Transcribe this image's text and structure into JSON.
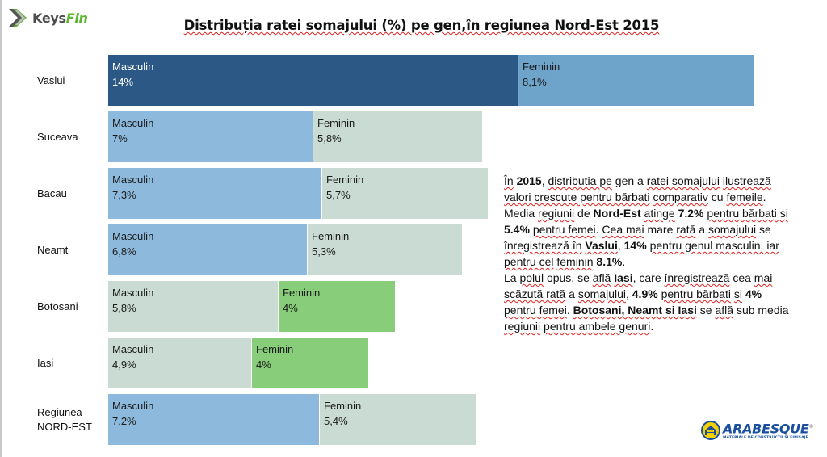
{
  "brand": {
    "keys": "Keys",
    "fin": "Fin"
  },
  "chart_data": {
    "type": "bar",
    "orientation": "horizontal-stacked",
    "title": "Distribuția ratei somajului (%) pe gen,în regiunea Nord-Est 2015",
    "xlabel": "",
    "ylabel": "",
    "unit": "%",
    "grid": false,
    "categories": [
      "Vaslui",
      "Suceava",
      "Bacau",
      "Neamt",
      "Botosani",
      "Iasi",
      "Regiunea NORD-EST"
    ],
    "category_lines": [
      [
        "Vaslui"
      ],
      [
        "Suceava"
      ],
      [
        "Bacau"
      ],
      [
        "Neamt"
      ],
      [
        "Botosani"
      ],
      [
        "Iasi"
      ],
      [
        "Regiunea",
        "NORD-EST"
      ]
    ],
    "series": [
      {
        "name": "Masculin",
        "values": [
          14,
          7,
          7.3,
          6.8,
          5.8,
          4.9,
          7.2
        ],
        "labels": [
          "14%",
          "7%",
          "7,3%",
          "6,8%",
          "5,8%",
          "4,9%",
          "7,2%"
        ]
      },
      {
        "name": "Feminin",
        "values": [
          8.1,
          5.8,
          5.7,
          5.3,
          4,
          4,
          5.4
        ],
        "labels": [
          "8,1%",
          "5,8%",
          "5,7%",
          "5,3%",
          "4%",
          "4%",
          "5,4%"
        ]
      }
    ],
    "colors": {
      "Masculin": [
        "#2c5885",
        "#8dbadc",
        "#8dbadc",
        "#8dbadc",
        "#c9dbd3",
        "#c9dbd3",
        "#8dbadc"
      ],
      "Feminin": [
        "#6ea3ca",
        "#c9dbd3",
        "#c9dbd3",
        "#c9dbd3",
        "#88cd79",
        "#88cd79",
        "#c9dbd3"
      ]
    },
    "xlim": [
      0,
      22.1
    ]
  },
  "commentary": {
    "p1": [
      {
        "t": " "
      },
      {
        "t": "În",
        "sq": true
      },
      {
        "t": " "
      },
      {
        "t": "2015",
        "b": true
      },
      {
        "t": ", "
      },
      {
        "t": "distributia pe",
        "sq": true
      },
      {
        "t": " gen a "
      },
      {
        "t": "ratei somajului",
        "sq": true
      },
      {
        "t": " "
      },
      {
        "t": "ilustrează valori crescute pentru bărbati",
        "sq": true
      },
      {
        "t": " "
      },
      {
        "t": "comparativ",
        "sq": true
      },
      {
        "t": " cu "
      },
      {
        "t": "femeile",
        "sq": true
      },
      {
        "t": ". Media "
      },
      {
        "t": "regiunii",
        "sq": true
      },
      {
        "t": " de "
      },
      {
        "t": "Nord-Est",
        "b": true
      },
      {
        "t": " "
      },
      {
        "t": "atinge",
        "sq": true
      },
      {
        "t": " "
      },
      {
        "t": "7.2%",
        "b": true
      },
      {
        "t": " "
      },
      {
        "t": "pentru bărbati si",
        "sq": true
      },
      {
        "t": " "
      },
      {
        "t": "5.4%",
        "b": true
      },
      {
        "t": " "
      },
      {
        "t": "pentru femei",
        "sq": true
      },
      {
        "t": ". "
      },
      {
        "t": "Cea mai",
        "sq": true
      },
      {
        "t": " mare "
      },
      {
        "t": "rată",
        "sq": true
      },
      {
        "t": " a "
      },
      {
        "t": "somajului",
        "sq": true
      },
      {
        "t": " se "
      },
      {
        "t": "înregistrează în",
        "sq": true
      },
      {
        "t": " "
      },
      {
        "t": "Vaslui",
        "b": true,
        "sq": true
      },
      {
        "t": ", "
      },
      {
        "t": "14%",
        "b": true
      },
      {
        "t": " "
      },
      {
        "t": "pentru genul masculin, iar pentru cel",
        "sq": true
      },
      {
        "t": " "
      },
      {
        "t": "feminin",
        "sq": true
      },
      {
        "t": " "
      },
      {
        "t": "8.1%",
        "b": true
      },
      {
        "t": "."
      }
    ],
    "p2": [
      {
        "t": " La "
      },
      {
        "t": "polul",
        "sq": true
      },
      {
        "t": " opus, se "
      },
      {
        "t": "află",
        "sq": true
      },
      {
        "t": " "
      },
      {
        "t": "Iasi",
        "b": true,
        "sq": true
      },
      {
        "t": ", care "
      },
      {
        "t": "înregistrează",
        "sq": true
      },
      {
        "t": " cea "
      },
      {
        "t": "mai scăzută rată",
        "sq": true
      },
      {
        "t": " a "
      },
      {
        "t": "somajului",
        "sq": true
      },
      {
        "t": ", "
      },
      {
        "t": "4.9%",
        "b": true
      },
      {
        "t": " "
      },
      {
        "t": "pentru bărbati",
        "sq": true
      },
      {
        "t": " "
      },
      {
        "t": "si",
        "sq": true
      },
      {
        "t": " "
      },
      {
        "t": "4%",
        "b": true
      },
      {
        "t": " "
      },
      {
        "t": "pentru femei",
        "sq": true
      },
      {
        "t": ". "
      },
      {
        "t": "Botosani, Neamt si Iasi",
        "b": true,
        "sq": true
      },
      {
        "t": " se "
      },
      {
        "t": "află",
        "sq": true
      },
      {
        "t": " "
      },
      {
        "t": "sub media "
      },
      {
        "t": "regiunii",
        "sq": true
      },
      {
        "t": "  "
      },
      {
        "t": "pentru ambele genuri",
        "sq": true
      },
      {
        "t": "."
      }
    ]
  },
  "partner_logo": {
    "name": "ARABESQUE",
    "registered": "®",
    "tagline": "MATERIALE DE CONSTRUCTII SI FINISAJE"
  }
}
